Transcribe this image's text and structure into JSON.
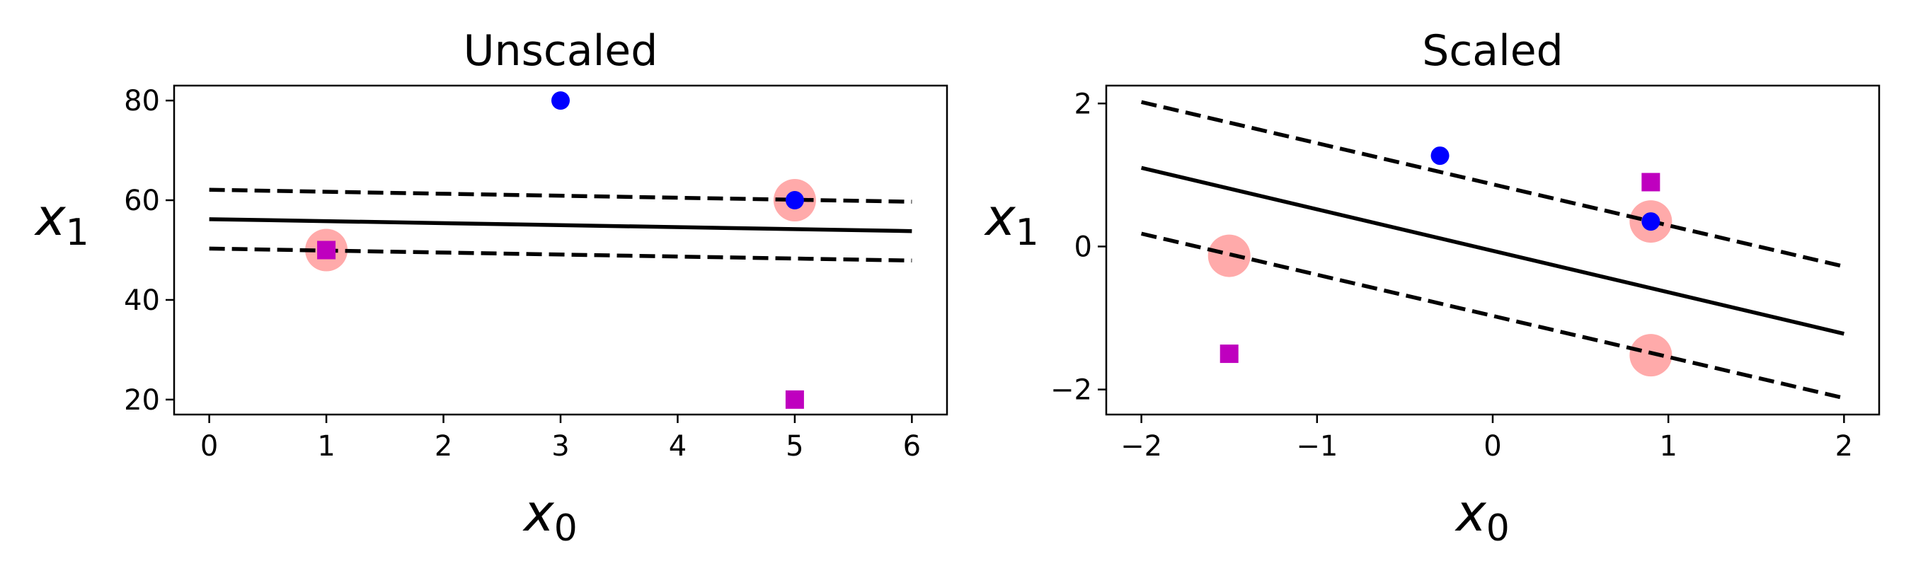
{
  "chart_data": [
    {
      "type": "scatter",
      "title": "Unscaled",
      "xlabel": "x",
      "xlabel_sub": "0",
      "ylabel": "x",
      "ylabel_sub": "1",
      "xlim": [
        -0.3,
        6.3
      ],
      "ylim": [
        17,
        83
      ],
      "xticks": [
        0,
        1,
        2,
        3,
        4,
        5,
        6
      ],
      "xtick_labels": [
        "0",
        "1",
        "2",
        "3",
        "4",
        "5",
        "6"
      ],
      "yticks": [
        20,
        40,
        60,
        80
      ],
      "ytick_labels": [
        "20",
        "40",
        "60",
        "80"
      ],
      "grid": false,
      "series": [
        {
          "marker": "square",
          "color": "#bf00bf",
          "points": [
            [
              1,
              50
            ],
            [
              5,
              20
            ]
          ]
        },
        {
          "marker": "circle",
          "color": "#0000ff",
          "points": [
            [
              3,
              80
            ],
            [
              5,
              60
            ]
          ]
        }
      ],
      "support_vectors": {
        "color": "#ffaaaa",
        "points": [
          [
            1,
            50
          ],
          [
            5,
            60
          ]
        ]
      },
      "lines": [
        {
          "style": "solid",
          "color": "#000000",
          "points": [
            [
              0,
              56.2
            ],
            [
              6,
              53.8
            ]
          ]
        },
        {
          "style": "dashed",
          "color": "#000000",
          "points": [
            [
              0,
              62.1
            ],
            [
              6,
              59.7
            ]
          ]
        },
        {
          "style": "dashed",
          "color": "#000000",
          "points": [
            [
              0,
              50.3
            ],
            [
              6,
              47.9
            ]
          ]
        }
      ]
    },
    {
      "type": "scatter",
      "title": "Scaled",
      "xlabel": "x",
      "xlabel_sub": "0",
      "ylabel": "x",
      "ylabel_sub": "1",
      "xlim": [
        -2.2,
        2.2
      ],
      "ylim": [
        -2.35,
        2.25
      ],
      "xticks": [
        -2,
        -1,
        0,
        1,
        2
      ],
      "xtick_labels": [
        "−2",
        "−1",
        "0",
        "1",
        "2"
      ],
      "yticks": [
        -2,
        0,
        2
      ],
      "ytick_labels": [
        "−2",
        "0",
        "2"
      ],
      "grid": false,
      "series": [
        {
          "marker": "square",
          "color": "#bf00bf",
          "points": [
            [
              -1.5,
              -1.5
            ],
            [
              0.9,
              0.9
            ]
          ]
        },
        {
          "marker": "circle",
          "color": "#0000ff",
          "points": [
            [
              -0.3,
              1.27
            ],
            [
              0.9,
              0.35
            ]
          ]
        }
      ],
      "support_vectors": {
        "color": "#ffaaaa",
        "points": [
          [
            -1.5,
            -0.13
          ],
          [
            0.9,
            0.35
          ],
          [
            0.9,
            -1.52
          ]
        ]
      },
      "lines": [
        {
          "style": "solid",
          "color": "#000000",
          "points": [
            [
              -2,
              1.1
            ],
            [
              2,
              -1.22
            ]
          ]
        },
        {
          "style": "dashed",
          "color": "#000000",
          "points": [
            [
              -2,
              2.02
            ],
            [
              2,
              -0.28
            ]
          ]
        },
        {
          "style": "dashed",
          "color": "#000000",
          "points": [
            [
              -2,
              0.18
            ],
            [
              2,
              -2.12
            ]
          ]
        }
      ]
    }
  ]
}
